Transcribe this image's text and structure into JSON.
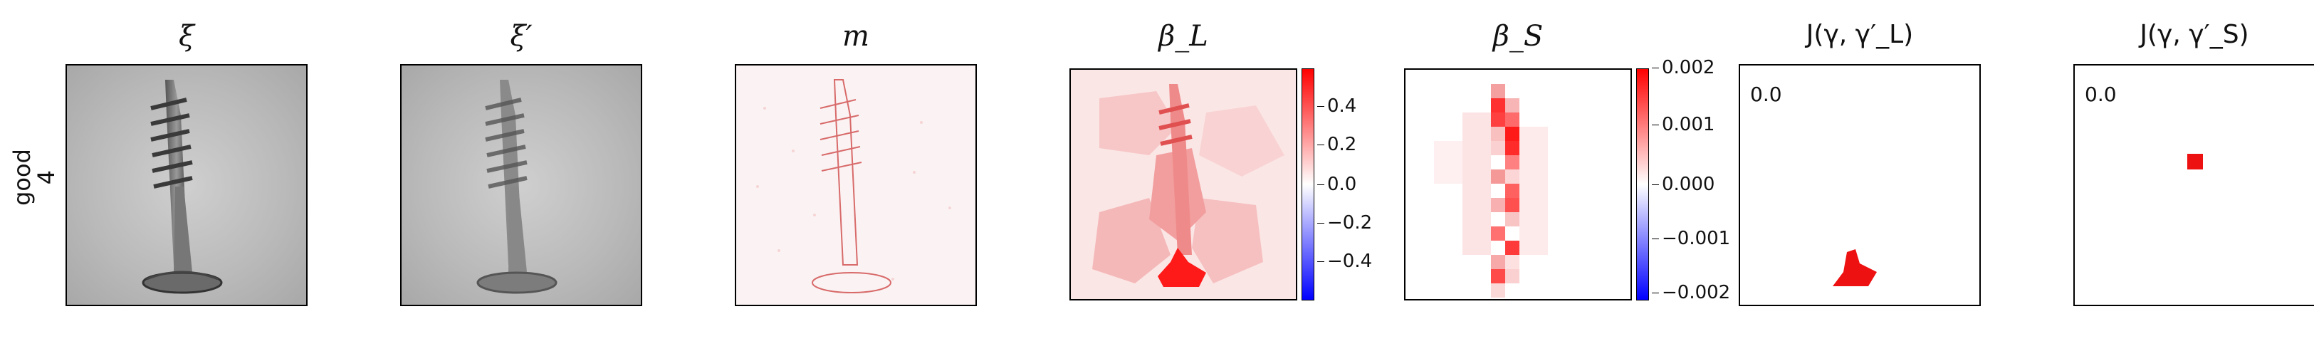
{
  "row_label": {
    "line1": "good",
    "line2": "4"
  },
  "panels": {
    "xi": {
      "title": "ξ"
    },
    "xi_prime": {
      "title": "ξ′"
    },
    "m": {
      "title": "m"
    },
    "beta_l": {
      "title": "β_L",
      "colorbar_ticks": [
        "0.4",
        "0.2",
        "0.0",
        "−0.2",
        "−0.4"
      ]
    },
    "beta_s": {
      "title": "β_S",
      "colorbar_ticks": [
        "0.002",
        "0.001",
        "0.000",
        "−0.001",
        "−0.002"
      ]
    },
    "j_l": {
      "title": "J(γ, γ′_L)",
      "value": "0.0"
    },
    "j_s": {
      "title": "J(γ, γ′_S)",
      "value": "0.0"
    }
  },
  "colors": {
    "positive": "#ff0000",
    "negative": "#0000ff",
    "neutral": "#ffffff"
  }
}
